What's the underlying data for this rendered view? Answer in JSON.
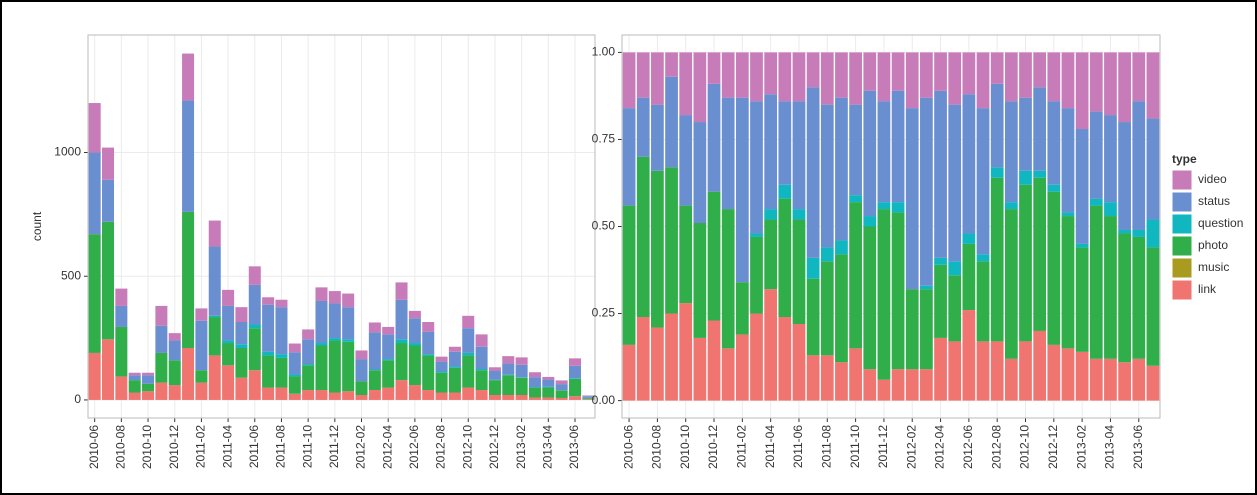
{
  "chart_data": [
    {
      "type": "bar",
      "stacking": "stacked",
      "y_label": "count",
      "categories": [
        "2010-06",
        null,
        "2010-08",
        null,
        "2010-10",
        null,
        "2010-12",
        null,
        "2011-02",
        null,
        "2011-04",
        null,
        "2011-06",
        null,
        "2011-08",
        null,
        "2011-10",
        null,
        "2011-12",
        null,
        "2012-02",
        null,
        "2012-04",
        null,
        "2012-06",
        null,
        "2012-08",
        null,
        "2012-10",
        null,
        "2012-12",
        null,
        "2013-02",
        null,
        "2013-04",
        null,
        "2013-06",
        null
      ],
      "ylim": [
        -73,
        1475
      ],
      "yticks": [
        0,
        500,
        1000
      ],
      "grid": true,
      "series": [
        {
          "name": "link",
          "color": "#f07470",
          "values": [
            190,
            245,
            95,
            30,
            35,
            70,
            60,
            210,
            70,
            180,
            140,
            90,
            120,
            50,
            50,
            25,
            40,
            40,
            30,
            35,
            20,
            40,
            50,
            80,
            60,
            40,
            30,
            30,
            50,
            40,
            20,
            20,
            20,
            10,
            10,
            8,
            15,
            3
          ]
        },
        {
          "name": "music",
          "color": "#a99a20",
          "values": [
            0,
            0,
            0,
            0,
            0,
            0,
            0,
            0,
            0,
            0,
            0,
            0,
            0,
            0,
            0,
            0,
            0,
            0,
            0,
            0,
            0,
            0,
            0,
            0,
            0,
            0,
            0,
            0,
            0,
            0,
            0,
            0,
            0,
            0,
            0,
            0,
            0,
            0
          ]
        },
        {
          "name": "photo",
          "color": "#2fae4a",
          "values": [
            480,
            475,
            200,
            50,
            30,
            120,
            100,
            550,
            50,
            155,
            90,
            120,
            170,
            130,
            120,
            70,
            100,
            180,
            210,
            200,
            55,
            80,
            110,
            150,
            160,
            140,
            80,
            100,
            130,
            80,
            60,
            80,
            70,
            40,
            40,
            30,
            70,
            4
          ]
        },
        {
          "name": "question",
          "color": "#10b6c0",
          "values": [
            0,
            0,
            0,
            0,
            0,
            0,
            0,
            0,
            0,
            5,
            10,
            15,
            15,
            15,
            15,
            8,
            5,
            10,
            10,
            10,
            0,
            3,
            5,
            15,
            10,
            5,
            5,
            5,
            10,
            5,
            2,
            2,
            2,
            2,
            3,
            1,
            3,
            2
          ]
        },
        {
          "name": "status",
          "color": "#6a8fd0",
          "values": [
            330,
            170,
            85,
            20,
            35,
            110,
            80,
            450,
            200,
            280,
            140,
            90,
            160,
            190,
            190,
            90,
            100,
            170,
            140,
            130,
            90,
            150,
            100,
            160,
            100,
            90,
            40,
            60,
            100,
            90,
            35,
            45,
            50,
            40,
            30,
            25,
            50,
            6
          ]
        },
        {
          "name": "video",
          "color": "#c77cb9",
          "values": [
            200,
            130,
            70,
            10,
            10,
            80,
            30,
            190,
            50,
            105,
            65,
            60,
            75,
            30,
            30,
            35,
            40,
            55,
            50,
            55,
            35,
            40,
            30,
            70,
            30,
            40,
            20,
            20,
            50,
            50,
            15,
            30,
            30,
            20,
            10,
            15,
            30,
            3
          ]
        }
      ]
    },
    {
      "type": "bar",
      "stacking": "fill",
      "legend_title": "type",
      "legend": "right",
      "categories": [
        "2010-06",
        null,
        "2010-08",
        null,
        "2010-10",
        null,
        "2010-12",
        null,
        "2011-02",
        null,
        "2011-04",
        null,
        "2011-06",
        null,
        "2011-08",
        null,
        "2011-10",
        null,
        "2011-12",
        null,
        "2012-02",
        null,
        "2012-04",
        null,
        "2012-06",
        null,
        "2012-08",
        null,
        "2012-10",
        null,
        "2012-12",
        null,
        "2013-02",
        null,
        "2013-04",
        null,
        "2013-06",
        null
      ],
      "ylim": [
        -0.05,
        1.05
      ],
      "yticks": [
        {
          "value": 0,
          "label": "0.00"
        },
        {
          "value": 0.25,
          "label": "0.25"
        },
        {
          "value": 0.5,
          "label": "0.50"
        },
        {
          "value": 0.75,
          "label": "0.75"
        },
        {
          "value": 1,
          "label": "1.00"
        }
      ],
      "grid": true,
      "series": [
        {
          "name": "link",
          "color": "#f07470",
          "values": [
            0.16,
            0.24,
            0.21,
            0.25,
            0.28,
            0.18,
            0.23,
            0.15,
            0.19,
            0.25,
            0.32,
            0.24,
            0.22,
            0.13,
            0.13,
            0.11,
            0.15,
            0.09,
            0.06,
            0.09,
            0.09,
            0.09,
            0.18,
            0.17,
            0.26,
            0.17,
            0.17,
            0.12,
            0.17,
            0.2,
            0.16,
            0.15,
            0.14,
            0.12,
            0.12,
            0.11,
            0.12,
            0.1
          ]
        },
        {
          "name": "music",
          "color": "#a99a20",
          "values": [
            0,
            0,
            0,
            0,
            0,
            0,
            0,
            0,
            0,
            0,
            0,
            0,
            0,
            0,
            0,
            0,
            0,
            0,
            0,
            0,
            0,
            0,
            0,
            0,
            0,
            0,
            0,
            0,
            0,
            0,
            0,
            0,
            0,
            0,
            0,
            0,
            0,
            0
          ]
        },
        {
          "name": "photo",
          "color": "#2fae4a",
          "values": [
            0.4,
            0.46,
            0.45,
            0.42,
            0.28,
            0.33,
            0.37,
            0.4,
            0.15,
            0.22,
            0.2,
            0.34,
            0.3,
            0.22,
            0.27,
            0.31,
            0.42,
            0.41,
            0.49,
            0.45,
            0.23,
            0.23,
            0.21,
            0.19,
            0.19,
            0.23,
            0.47,
            0.43,
            0.45,
            0.44,
            0.44,
            0.38,
            0.3,
            0.44,
            0.41,
            0.37,
            0.35,
            0.34
          ]
        },
        {
          "name": "question",
          "color": "#10b6c0",
          "values": [
            0,
            0,
            0,
            0,
            0,
            0,
            0,
            0,
            0,
            0.01,
            0.03,
            0.04,
            0.03,
            0.06,
            0.04,
            0.04,
            0.02,
            0.03,
            0.02,
            0.03,
            0,
            0.01,
            0.02,
            0.04,
            0.03,
            0.02,
            0.03,
            0.02,
            0.04,
            0.02,
            0.02,
            0.01,
            0.01,
            0.02,
            0.04,
            0.01,
            0.02,
            0.08
          ]
        },
        {
          "name": "status",
          "color": "#6a8fd0",
          "values": [
            0.28,
            0.17,
            0.19,
            0.26,
            0.26,
            0.29,
            0.31,
            0.32,
            0.53,
            0.38,
            0.33,
            0.24,
            0.31,
            0.49,
            0.41,
            0.41,
            0.26,
            0.36,
            0.29,
            0.32,
            0.52,
            0.54,
            0.48,
            0.45,
            0.4,
            0.42,
            0.24,
            0.29,
            0.21,
            0.24,
            0.24,
            0.3,
            0.33,
            0.25,
            0.25,
            0.31,
            0.37,
            0.29
          ]
        },
        {
          "name": "video",
          "color": "#c77cb9",
          "values": [
            0.16,
            0.13,
            0.15,
            0.07,
            0.18,
            0.2,
            0.09,
            0.13,
            0.13,
            0.14,
            0.12,
            0.14,
            0.14,
            0.1,
            0.15,
            0.13,
            0.15,
            0.11,
            0.14,
            0.11,
            0.16,
            0.13,
            0.11,
            0.15,
            0.12,
            0.16,
            0.09,
            0.14,
            0.13,
            0.1,
            0.14,
            0.16,
            0.22,
            0.17,
            0.18,
            0.2,
            0.14,
            0.19
          ]
        }
      ]
    }
  ]
}
